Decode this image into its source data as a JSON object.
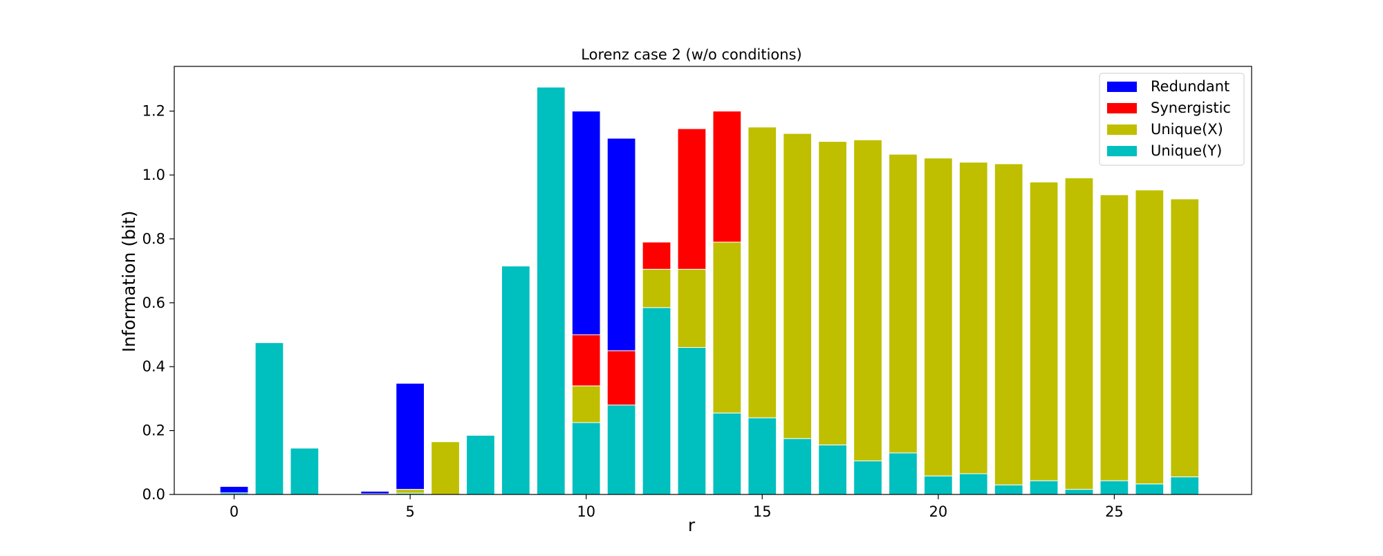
{
  "chart_data": {
    "type": "bar",
    "stacked": true,
    "title": "Lorenz case 2 (w/o conditions)",
    "xlabel": "r",
    "ylabel": "Information (bit)",
    "xlim": [
      -1.7,
      28.9
    ],
    "ylim": [
      0,
      1.34
    ],
    "xticks": [
      0,
      5,
      10,
      15,
      20,
      25
    ],
    "xtick_labels": [
      "0",
      "5",
      "10",
      "15",
      "20",
      "25"
    ],
    "yticks": [
      0.0,
      0.2,
      0.4,
      0.6,
      0.8,
      1.0,
      1.2
    ],
    "ytick_labels": [
      "0.0",
      "0.2",
      "0.4",
      "0.6",
      "0.8",
      "1.0",
      "1.2"
    ],
    "grid": false,
    "legend_position": "top-right",
    "x": [
      0,
      1,
      2,
      3,
      4,
      5,
      6,
      7,
      8,
      9,
      10,
      11,
      12,
      13,
      14,
      15,
      16,
      17,
      18,
      19,
      20,
      21,
      22,
      23,
      24,
      25,
      26,
      27
    ],
    "series": [
      {
        "name": "Unique(Y)",
        "color": "#00bfbf",
        "values": [
          0.005,
          0.475,
          0.145,
          0,
          0.002,
          0.004,
          0,
          0.185,
          0.715,
          1.275,
          0.225,
          0.28,
          0.585,
          0.46,
          0.255,
          0.24,
          0.175,
          0.155,
          0.105,
          0.13,
          0.058,
          0.065,
          0.03,
          0.043,
          0.016,
          0.043,
          0.033,
          0.055
        ]
      },
      {
        "name": "Unique(X)",
        "color": "#bfbf00",
        "values": [
          0,
          0,
          0,
          0,
          0,
          0.012,
          0.165,
          0,
          0,
          0,
          0.115,
          0,
          0.12,
          0.245,
          0.535,
          0.91,
          0.955,
          0.95,
          1.005,
          0.935,
          0.995,
          0.975,
          1.005,
          0.935,
          0.975,
          0.895,
          0.92,
          0.87
        ]
      },
      {
        "name": "Synergistic",
        "color": "#ff0000",
        "values": [
          0,
          0,
          0,
          0,
          0,
          0,
          0,
          0,
          0,
          0,
          0.16,
          0.17,
          0.085,
          0.44,
          0.41,
          0,
          0,
          0,
          0,
          0,
          0,
          0,
          0,
          0,
          0,
          0,
          0,
          0
        ]
      },
      {
        "name": "Redundant",
        "color": "#0000ff",
        "values": [
          0.02,
          0,
          0,
          0,
          0.008,
          0.332,
          0,
          0,
          0,
          0,
          0.7,
          0.665,
          0,
          0,
          0,
          0,
          0,
          0,
          0,
          0,
          0,
          0,
          0,
          0,
          0,
          0,
          0,
          0
        ]
      }
    ],
    "legend_order": [
      "Redundant",
      "Synergistic",
      "Unique(X)",
      "Unique(Y)"
    ]
  }
}
